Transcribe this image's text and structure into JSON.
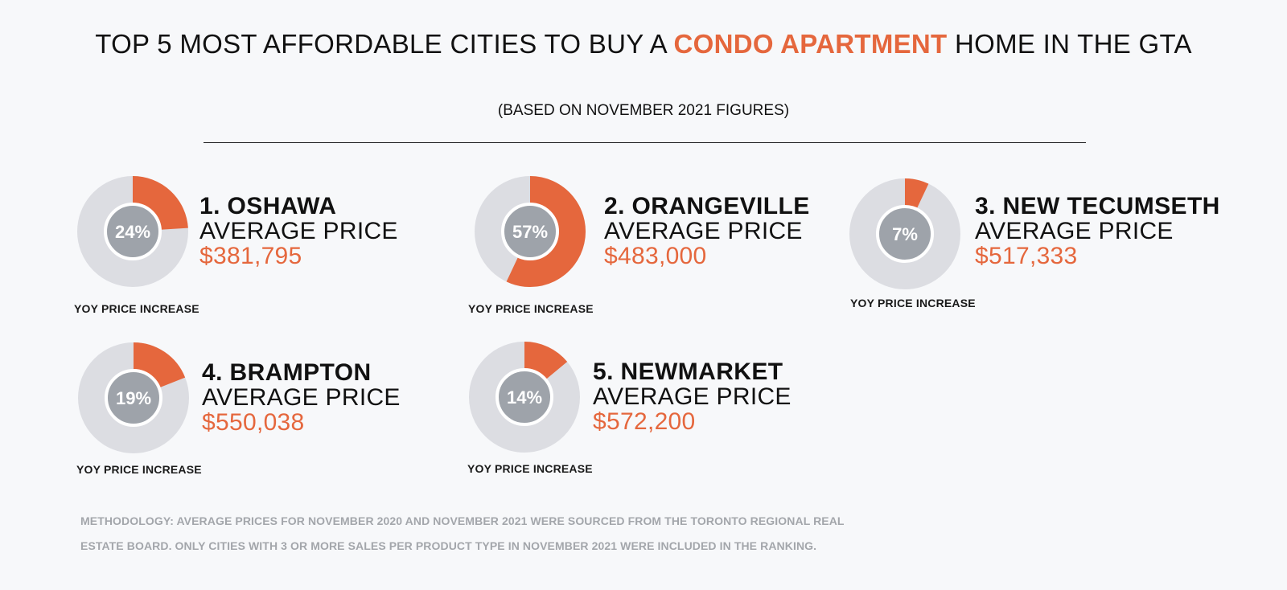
{
  "header": {
    "title_part1": "TOP 5 MOST AFFORDABLE CITIES TO BUY A ",
    "title_accent": "CONDO APARTMENT",
    "title_part2": " HOME IN THE GTA",
    "subtitle": "(BASED ON NOVEMBER 2021 FIGURES)"
  },
  "colors": {
    "accent": "#e5673d",
    "ring_track": "#dcdde2",
    "inner_circle": "#9ea3aa",
    "background": "#f7f8fa",
    "footnote": "#a3a6ab"
  },
  "chart_data": {
    "type": "donut",
    "series_label": "YOY PRICE INCREASE",
    "categories": [
      "OSHAWA",
      "ORANGEVILLE",
      "NEW TECUMSETH",
      "BRAMPTON",
      "NEWMARKET"
    ],
    "values": [
      24,
      57,
      7,
      19,
      14
    ],
    "unit": "%",
    "average_prices": [
      "$381,795",
      "$483,000",
      "$517,333",
      "$550,038",
      "$572,200"
    ]
  },
  "cities": [
    {
      "rank_name": "1. OSHAWA",
      "avg_label": "AVERAGE PRICE",
      "price": "$381,795",
      "pct": 24,
      "pct_label": "24%",
      "yoy_label": "YOY PRICE INCREASE"
    },
    {
      "rank_name": "2. ORANGEVILLE",
      "avg_label": "AVERAGE PRICE",
      "price": "$483,000",
      "pct": 57,
      "pct_label": "57%",
      "yoy_label": "YOY PRICE INCREASE"
    },
    {
      "rank_name": "3. NEW TECUMSETH",
      "avg_label": "AVERAGE PRICE",
      "price": "$517,333",
      "pct": 7,
      "pct_label": "7%",
      "yoy_label": "YOY PRICE INCREASE"
    },
    {
      "rank_name": "4. BRAMPTON",
      "avg_label": "AVERAGE PRICE",
      "price": "$550,038",
      "pct": 19,
      "pct_label": "19%",
      "yoy_label": "YOY PRICE INCREASE"
    },
    {
      "rank_name": "5. NEWMARKET",
      "avg_label": "AVERAGE PRICE",
      "price": "$572,200",
      "pct": 14,
      "pct_label": "14%",
      "yoy_label": "YOY PRICE INCREASE"
    }
  ],
  "footer": {
    "methodology_line1": "METHODOLOGY: AVERAGE PRICES FOR NOVEMBER 2020 AND NOVEMBER 2021 WERE SOURCED FROM THE TORONTO REGIONAL REAL",
    "methodology_line2": "ESTATE BOARD. ONLY CITIES WITH 3 OR MORE SALES PER PRODUCT TYPE IN NOVEMBER 2021 WERE INCLUDED IN THE RANKING."
  }
}
